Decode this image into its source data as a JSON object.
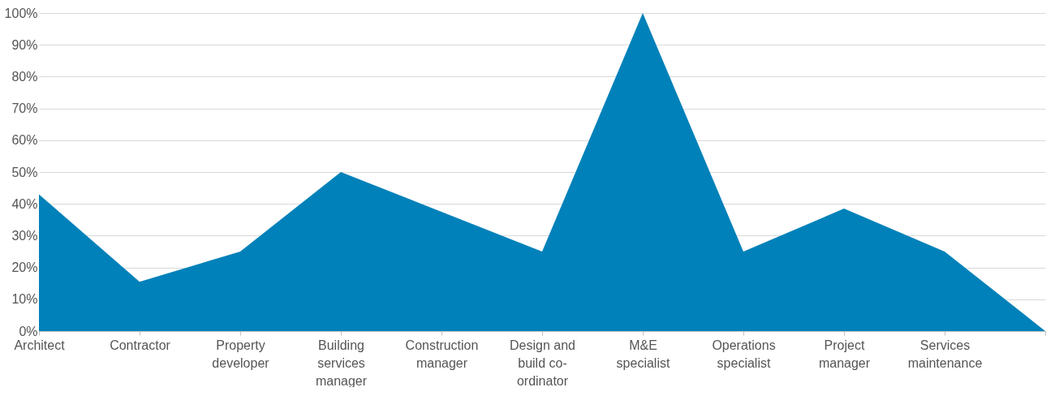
{
  "chart_data": {
    "type": "area",
    "categories": [
      "Architect",
      "Contractor",
      "Property developer",
      "Building services manager",
      "Construction manager",
      "Design and build co-ordinator",
      "M&E specialist",
      "Operations specialist",
      "Project manager",
      "Services maintenance",
      null
    ],
    "series": [
      {
        "color": "#0081b9",
        "values": [
          43,
          15.5,
          25,
          50,
          37.5,
          25,
          100,
          25,
          38.5,
          25,
          0
        ]
      }
    ],
    "ylim": [
      0,
      100
    ],
    "yticks": [
      {
        "value": 0,
        "label": "0%"
      },
      {
        "value": 10,
        "label": "10%"
      },
      {
        "value": 20,
        "label": "20%"
      },
      {
        "value": 30,
        "label": "30%"
      },
      {
        "value": 40,
        "label": "40%"
      },
      {
        "value": 50,
        "label": "50%"
      },
      {
        "value": 60,
        "label": "60%"
      },
      {
        "value": 70,
        "label": "70%"
      },
      {
        "value": 80,
        "label": "80%"
      },
      {
        "value": 90,
        "label": "90%"
      },
      {
        "value": 100,
        "label": "100%"
      }
    ],
    "grid": "y"
  }
}
